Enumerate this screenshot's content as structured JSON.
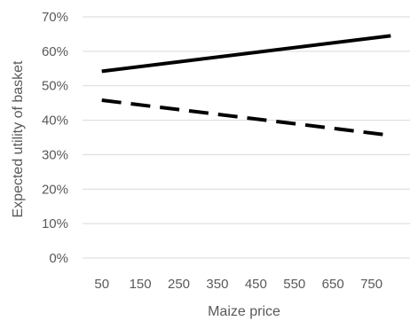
{
  "chart_data": {
    "type": "line",
    "xlabel": "Maize price",
    "ylabel": "Expected utility of basket",
    "x": [
      50,
      800
    ],
    "x_ticks": [
      "50",
      "150",
      "250",
      "350",
      "450",
      "550",
      "650",
      "750"
    ],
    "y_ticks": [
      "0%",
      "10%",
      "20%",
      "30%",
      "40%",
      "50%",
      "60%",
      "70%"
    ],
    "ylim": [
      0,
      70
    ],
    "grid": true,
    "series": [
      {
        "style": "solid",
        "color": "#000000",
        "values": [
          54.2,
          64.5
        ]
      },
      {
        "style": "dashed",
        "color": "#000000",
        "values": [
          45.8,
          35.6
        ]
      }
    ]
  }
}
